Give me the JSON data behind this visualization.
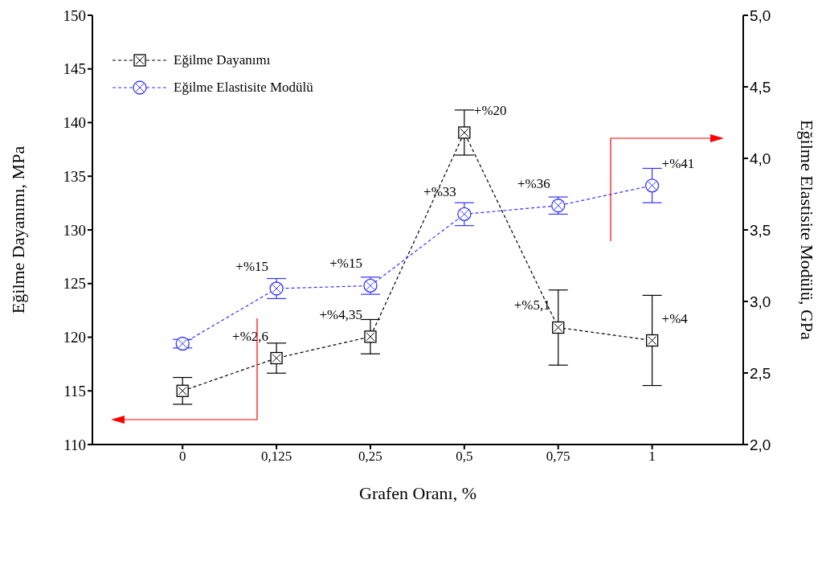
{
  "chart_data": {
    "type": "line",
    "categories": [
      "0",
      "0,125",
      "0,25",
      "0,5",
      "0,75",
      "1"
    ],
    "xlabel": "Grafen Oranı, %",
    "ylabel": "Eğilme Dayanımı, MPa",
    "y2label": "Eğilme Elastisite Modülü, GPa",
    "ylim": [
      110,
      150
    ],
    "yticks": [
      110,
      115,
      120,
      125,
      130,
      135,
      140,
      145,
      150
    ],
    "y2lim": [
      2.0,
      5.0
    ],
    "y2ticks": [
      {
        "value": 2.0,
        "label": "2,0"
      },
      {
        "value": 2.5,
        "label": "2,5"
      },
      {
        "value": 3.0,
        "label": "3,0"
      },
      {
        "value": 3.5,
        "label": "3,5"
      },
      {
        "value": 4.0,
        "label": "4,0"
      },
      {
        "value": 4.5,
        "label": "4,5"
      },
      {
        "value": 5.0,
        "label": "5,0"
      }
    ],
    "grid": false,
    "legend": "top left",
    "line_style": "dashed",
    "series": [
      {
        "name": "Eğilme Dayanımı",
        "color": "#000000",
        "marker": "square",
        "values": [
          115.0,
          118.05,
          120.05,
          139.07,
          120.9,
          119.7
        ],
        "errors": [
          1.25,
          1.4,
          1.6,
          2.1,
          3.5,
          4.2
        ]
      },
      {
        "name": "Eğilme Elastisite Modülü",
        "color": "#3333ff",
        "marker": "circle",
        "axis": "y2",
        "values": [
          2.705,
          3.09,
          3.11,
          3.61,
          3.67,
          3.81
        ],
        "errors": [
          0.03,
          0.07,
          0.06,
          0.08,
          0.06,
          0.12
        ]
      }
    ],
    "annotations": [
      {
        "text": "+%2,6",
        "x": "0,125",
        "y": 118.05
      },
      {
        "text": "+%4,35",
        "x": "0,25",
        "y": 120.05
      },
      {
        "text": "+%20",
        "x": "0,5",
        "y": 139.07
      },
      {
        "text": "+%5,1",
        "x": "0,75",
        "y": 120.9
      },
      {
        "text": "+%4",
        "x": "1",
        "y": 119.7
      },
      {
        "text": "+%15",
        "x": "0,125",
        "y": 124.53
      },
      {
        "text": "+%15",
        "x": "0,25",
        "y": 124.8
      },
      {
        "text": "+%33",
        "x": "0,5",
        "y": 131.47
      },
      {
        "text": "+%36",
        "x": "0,75",
        "y": 132.27
      },
      {
        "text": "+%41",
        "x": "1",
        "y": 134.13
      }
    ]
  }
}
